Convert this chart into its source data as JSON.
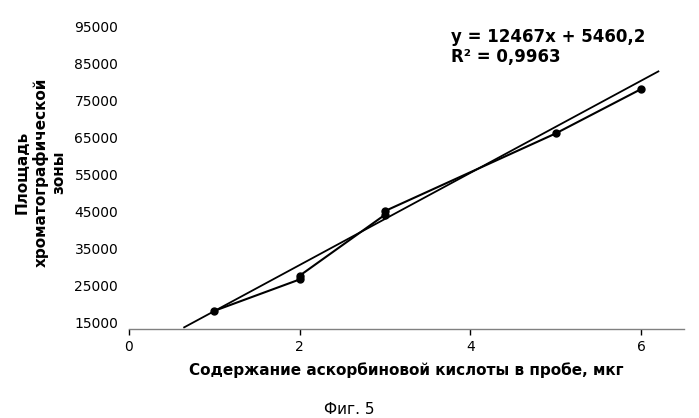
{
  "x_data": [
    1,
    2,
    2,
    3,
    3,
    5,
    6
  ],
  "y_data": [
    18000,
    26500,
    27500,
    44000,
    45000,
    66000,
    78000
  ],
  "slope": 12467,
  "intercept": 5460.2,
  "equation_text": "y = 12467x + 5460,2",
  "r2_text": "R² = 0,9963",
  "xlabel": "Содержание аскорбиновой кислоты в пробе, мкг",
  "ylabel_line1": "Площадь",
  "ylabel_line2": "хроматографической",
  "ylabel_line3": "зоны",
  "fig_label": "Фиг. 5",
  "xlim": [
    0,
    6.5
  ],
  "ylim": [
    13000,
    98000
  ],
  "yticks": [
    15000,
    25000,
    35000,
    45000,
    55000,
    65000,
    75000,
    85000,
    95000
  ],
  "xticks": [
    0,
    2,
    4,
    6
  ],
  "line_x_start": 0.65,
  "line_x_end": 6.2,
  "background_color": "#ffffff",
  "data_color": "#000000",
  "line_color": "#000000",
  "spine_color": "#808080"
}
